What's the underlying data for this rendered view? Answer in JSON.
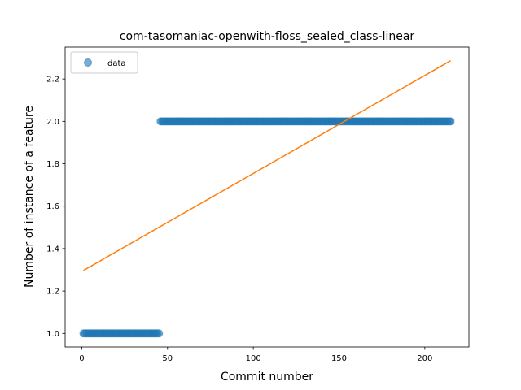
{
  "chart_data": {
    "type": "scatter",
    "title": "com-tasomaniac-openwith-floss_sealed_class-linear",
    "xlabel": "Commit number",
    "ylabel": "Number of instance of a feature",
    "xlim": [
      -9.7,
      225.7
    ],
    "ylim": [
      0.936,
      2.35
    ],
    "xticks": [
      0,
      50,
      100,
      150,
      200
    ],
    "yticks": [
      1.0,
      1.2,
      1.4,
      1.6,
      1.8,
      2.0,
      2.2
    ],
    "ytick_labels": [
      "1.0",
      "1.2",
      "1.4",
      "1.6",
      "1.8",
      "2.0",
      "2.2"
    ],
    "legend_position": "upper-left",
    "series": [
      {
        "name": "data",
        "kind": "scatter",
        "color": "#1f77b4",
        "segments": [
          {
            "x_start": 1,
            "x_end": 45,
            "y": 1.0
          },
          {
            "x_start": 46,
            "x_end": 215,
            "y": 2.0
          }
        ]
      },
      {
        "kind": "line",
        "color": "#ff7f0e",
        "x": [
          1,
          215
        ],
        "y": [
          1.297,
          2.286
        ]
      }
    ]
  }
}
